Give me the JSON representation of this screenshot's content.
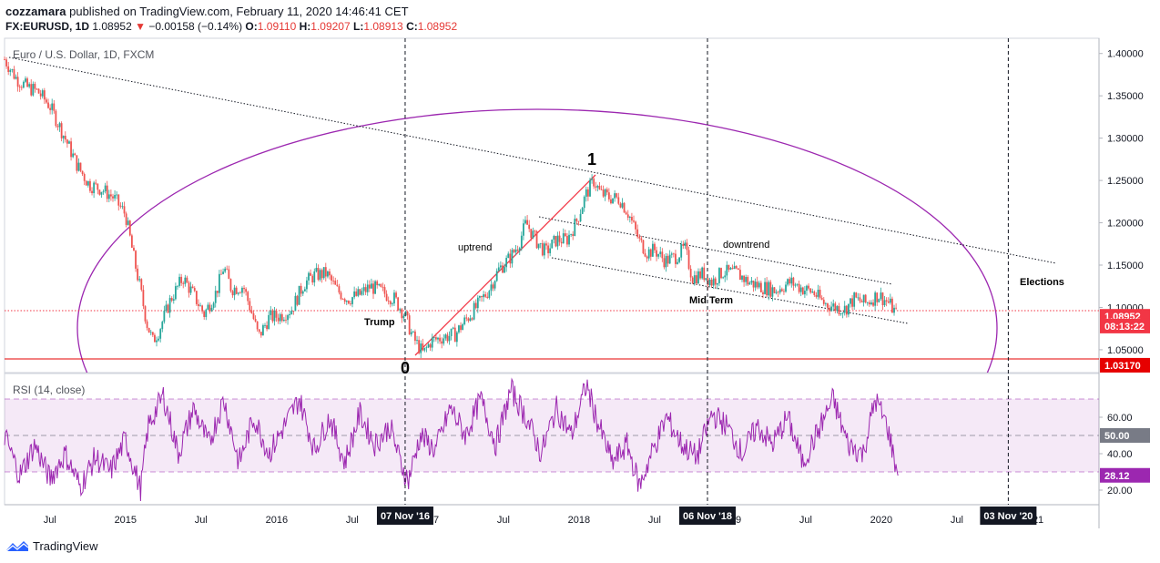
{
  "header": {
    "author": "cozzamara",
    "published_text": "published on TradingView.com, February 11, 2020 14:46:41 CET",
    "symbol": "FX:EURUSD, 1D",
    "last": "1.08952",
    "change_arrow": "▼",
    "change": "−0.00158 (−0.14%)",
    "o_label": "O:",
    "o_value": "1.09110",
    "h_label": "H:",
    "h_value": "1.09207",
    "l_label": "L:",
    "l_value": "1.08913",
    "c_label": "C:",
    "c_value": "1.08952"
  },
  "footer": {
    "brand": "TradingView"
  },
  "chart_data": [
    {
      "type": "line",
      "title": "Euro / U.S. Dollar, 1D, FXCM",
      "ylim": [
        1.023,
        1.418
      ],
      "y_ticks": [
        "1.40000",
        "1.35000",
        "1.30000",
        "1.25000",
        "1.20000",
        "1.15000",
        "1.10000",
        "1.05000"
      ],
      "y_tick_values": [
        1.4,
        1.35,
        1.3,
        1.25,
        1.2,
        1.15,
        1.1,
        1.05
      ],
      "x_ticks": [
        "Jul",
        "2015",
        "Jul",
        "2016",
        "Jul",
        "2017",
        "Jul",
        "2018",
        "Jul",
        "2019",
        "Jul",
        "2020",
        "Jul",
        "2021"
      ],
      "x_tick_values": [
        2014.5,
        2015.0,
        2015.5,
        2016.0,
        2016.5,
        2017.0,
        2017.5,
        2018.0,
        2018.5,
        2019.0,
        2019.5,
        2020.0,
        2020.5,
        2021.0
      ],
      "xlim": [
        2014.2,
        2021.44
      ],
      "series": [
        {
          "x": [
            2014.2,
            2014.28,
            2014.35,
            2014.42,
            2014.5,
            2014.6,
            2014.68,
            2014.76,
            2014.84,
            2014.92,
            2015.0,
            2015.05,
            2015.1,
            2015.14,
            2015.18,
            2015.22,
            2015.3,
            2015.38,
            2015.45,
            2015.52,
            2015.6,
            2015.65,
            2015.7,
            2015.78,
            2015.85,
            2015.88,
            2015.95,
            2016.02,
            2016.1,
            2016.18,
            2016.25,
            2016.33,
            2016.4,
            2016.47,
            2016.55,
            2016.62,
            2016.7,
            2016.78,
            2016.85,
            2016.9,
            2016.97,
            2017.02,
            2017.1,
            2017.18,
            2017.25,
            2017.32,
            2017.4,
            2017.47,
            2017.55,
            2017.6,
            2017.65,
            2017.72,
            2017.78,
            2017.85,
            2017.92,
            2017.98,
            2018.05,
            2018.1,
            2018.14,
            2018.2,
            2018.27,
            2018.33,
            2018.4,
            2018.45,
            2018.5,
            2018.57,
            2018.64,
            2018.7,
            2018.75,
            2018.82,
            2018.88,
            2018.95,
            2019.05,
            2019.12,
            2019.2,
            2019.3,
            2019.4,
            2019.48,
            2019.55,
            2019.62,
            2019.7,
            2019.76,
            2019.82,
            2019.9,
            2019.98,
            2020.05,
            2020.11
          ],
          "values": [
            1.393,
            1.37,
            1.36,
            1.355,
            1.338,
            1.3,
            1.268,
            1.245,
            1.24,
            1.23,
            1.21,
            1.163,
            1.12,
            1.082,
            1.06,
            1.072,
            1.11,
            1.135,
            1.115,
            1.092,
            1.118,
            1.148,
            1.122,
            1.125,
            1.085,
            1.065,
            1.088,
            1.09,
            1.098,
            1.128,
            1.138,
            1.14,
            1.12,
            1.11,
            1.115,
            1.125,
            1.118,
            1.11,
            1.09,
            1.065,
            1.045,
            1.06,
            1.065,
            1.068,
            1.085,
            1.1,
            1.12,
            1.145,
            1.16,
            1.175,
            1.2,
            1.178,
            1.165,
            1.18,
            1.18,
            1.2,
            1.235,
            1.25,
            1.235,
            1.23,
            1.228,
            1.21,
            1.178,
            1.165,
            1.168,
            1.155,
            1.16,
            1.17,
            1.135,
            1.14,
            1.13,
            1.142,
            1.14,
            1.13,
            1.125,
            1.12,
            1.13,
            1.122,
            1.118,
            1.105,
            1.1,
            1.098,
            1.11,
            1.105,
            1.115,
            1.105,
            1.0895
          ]
        }
      ],
      "price_tags": [
        {
          "value": 1.08952,
          "label": "1.08952",
          "color": "#f23645"
        },
        {
          "value": 1.078,
          "label": "08:13:22",
          "color": "#f23645"
        },
        {
          "value": 1.0317,
          "label": "1.03170",
          "color": "#e60000"
        }
      ],
      "vertical_markers": [
        {
          "x": 2016.85,
          "label": "07 Nov '16"
        },
        {
          "x": 2018.85,
          "label": "06 Nov '18"
        },
        {
          "x": 2020.84,
          "label": "03 Nov '20"
        }
      ],
      "annotations": {
        "trump": "Trump",
        "wave0": "0",
        "wave1": "1",
        "uptrend": "uptrend",
        "downtrend": "downtrend",
        "midterm": "Mid Term",
        "elections": "Elections"
      },
      "colors": {
        "ellipse": "#9c27b0",
        "impulse": "#f23645",
        "candle_up": "#26a69a",
        "candle_down": "#ef5350"
      }
    },
    {
      "type": "line",
      "title": "RSI (14, close)",
      "ylim": [
        12,
        84
      ],
      "y_ticks": [
        "60.00",
        "40.00",
        "20.00"
      ],
      "y_tick_values": [
        60,
        40,
        20
      ],
      "band": [
        30,
        70
      ],
      "price_tags": [
        {
          "value": 50,
          "label": "50.00",
          "color": "#787b86"
        },
        {
          "value": 28.12,
          "label": "28.12",
          "color": "#9c27b0"
        }
      ],
      "series": [
        {
          "x": [
            2014.2,
            2014.3,
            2014.4,
            2014.5,
            2014.6,
            2014.7,
            2014.8,
            2014.9,
            2015.0,
            2015.1,
            2015.15,
            2015.25,
            2015.35,
            2015.45,
            2015.55,
            2015.65,
            2015.75,
            2015.85,
            2015.95,
            2016.05,
            2016.15,
            2016.25,
            2016.35,
            2016.45,
            2016.55,
            2016.65,
            2016.75,
            2016.82,
            2016.87,
            2016.95,
            2017.05,
            2017.15,
            2017.25,
            2017.35,
            2017.45,
            2017.55,
            2017.65,
            2017.75,
            2017.85,
            2017.95,
            2018.05,
            2018.12,
            2018.22,
            2018.32,
            2018.4,
            2018.48,
            2018.58,
            2018.68,
            2018.78,
            2018.88,
            2018.98,
            2019.08,
            2019.18,
            2019.28,
            2019.38,
            2019.48,
            2019.58,
            2019.68,
            2019.78,
            2019.88,
            2019.96,
            2020.04,
            2020.11
          ],
          "values": [
            50,
            28,
            45,
            26,
            40,
            22,
            38,
            30,
            48,
            20,
            55,
            72,
            40,
            65,
            45,
            70,
            35,
            60,
            40,
            55,
            70,
            42,
            60,
            35,
            62,
            45,
            55,
            35,
            25,
            50,
            42,
            65,
            50,
            70,
            45,
            75,
            60,
            40,
            65,
            50,
            78,
            58,
            35,
            45,
            22,
            40,
            60,
            45,
            38,
            62,
            55,
            40,
            55,
            45,
            60,
            35,
            52,
            70,
            45,
            40,
            70,
            55,
            28
          ]
        }
      ]
    }
  ]
}
